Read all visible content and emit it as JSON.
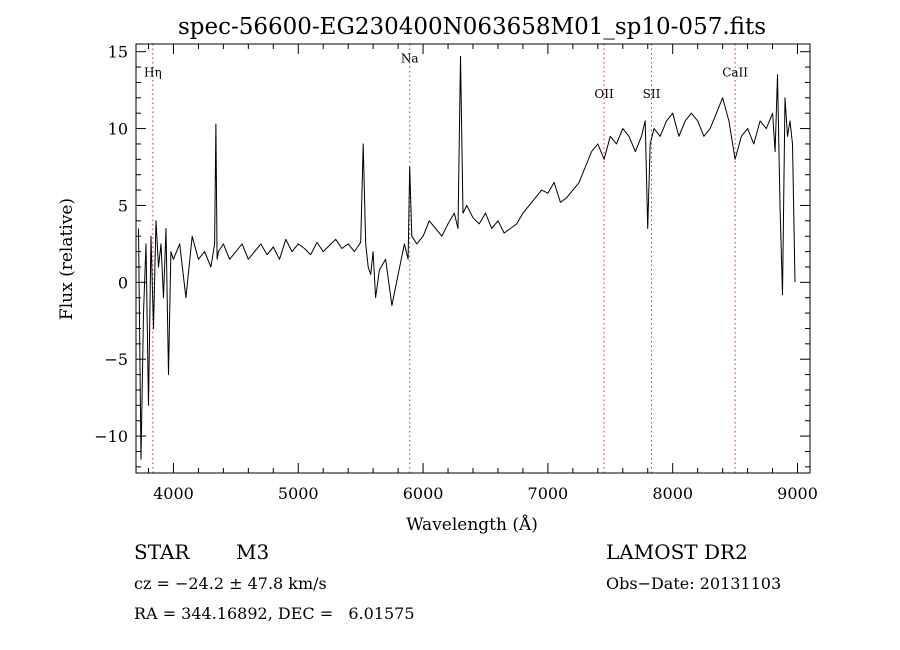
{
  "chart_data": {
    "type": "line",
    "title": "spec-56600-EG230400N063658M01_sp10-057.fits",
    "xlabel": "Wavelength (Å)",
    "ylabel": "Flux (relative)",
    "xlim": [
      3700,
      9100
    ],
    "ylim": [
      -12.4,
      15.5
    ],
    "xticks": [
      4000,
      5000,
      6000,
      7000,
      8000,
      9000
    ],
    "yticks": [
      -10,
      -5,
      0,
      5,
      10,
      15
    ],
    "ytick_labels": [
      "−10",
      "−5",
      "0",
      "5",
      "10",
      "15"
    ],
    "grid": false,
    "line_color": "#000000",
    "marker_color": "#cc3333",
    "lines": [
      {
        "label": "Hη",
        "x": 3835,
        "label_y": 13.4
      },
      {
        "label": "Na",
        "x": 5893,
        "label_y": 14.3
      },
      {
        "label": "OII",
        "x": 7450,
        "label_y": 12.0
      },
      {
        "label": "SII",
        "x": 7830,
        "label_y": 12.0
      },
      {
        "label": "CaII",
        "x": 8500,
        "label_y": 13.4
      }
    ],
    "series": [
      {
        "x": [
          3720,
          3740,
          3760,
          3780,
          3800,
          3820,
          3840,
          3860,
          3880,
          3900,
          3920,
          3940,
          3960,
          3980,
          4000,
          4050,
          4100,
          4150,
          4200,
          4250,
          4300,
          4330,
          4340,
          4350,
          4360,
          4400,
          4450,
          4500,
          4550,
          4600,
          4650,
          4700,
          4750,
          4800,
          4850,
          4900,
          4950,
          5000,
          5050,
          5100,
          5150,
          5200,
          5250,
          5300,
          5350,
          5400,
          5450,
          5500,
          5520,
          5540,
          5560,
          5580,
          5600,
          5620,
          5650,
          5700,
          5750,
          5800,
          5850,
          5880,
          5893,
          5910,
          5950,
          6000,
          6050,
          6100,
          6150,
          6200,
          6250,
          6280,
          6300,
          6320,
          6350,
          6400,
          6450,
          6500,
          6550,
          6600,
          6650,
          6700,
          6750,
          6800,
          6850,
          6900,
          6950,
          7000,
          7050,
          7100,
          7150,
          7200,
          7250,
          7300,
          7350,
          7400,
          7450,
          7500,
          7550,
          7600,
          7650,
          7700,
          7750,
          7780,
          7800,
          7820,
          7850,
          7900,
          7950,
          8000,
          8050,
          8100,
          8150,
          8200,
          8250,
          8300,
          8350,
          8400,
          8450,
          8500,
          8550,
          8600,
          8650,
          8700,
          8750,
          8800,
          8820,
          8840,
          8860,
          8880,
          8900,
          8920,
          8940,
          8960,
          8980
        ],
        "y": [
          3.5,
          -11.5,
          -2.0,
          2.5,
          -8.0,
          3.0,
          -3.0,
          4.0,
          1.0,
          2.5,
          -1.0,
          3.5,
          -6.0,
          2.0,
          1.5,
          2.5,
          -1.0,
          3.0,
          1.5,
          2.0,
          1.0,
          2.5,
          10.3,
          1.5,
          2.0,
          2.5,
          1.5,
          2.0,
          2.5,
          1.5,
          2.0,
          2.5,
          1.8,
          2.3,
          1.5,
          2.8,
          2.0,
          2.5,
          2.2,
          1.8,
          2.6,
          2.0,
          2.4,
          2.8,
          2.2,
          2.5,
          2.0,
          2.6,
          9.0,
          2.5,
          1.0,
          0.5,
          2.0,
          -1.0,
          0.8,
          1.5,
          -1.5,
          0.5,
          2.5,
          1.5,
          7.5,
          3.0,
          2.5,
          3.0,
          4.0,
          3.5,
          3.0,
          3.8,
          4.5,
          3.5,
          14.7,
          4.5,
          5.0,
          4.2,
          3.8,
          4.5,
          3.5,
          4.0,
          3.2,
          3.5,
          3.8,
          4.5,
          5.0,
          5.5,
          6.0,
          5.8,
          6.5,
          5.2,
          5.5,
          6.0,
          6.5,
          7.5,
          8.5,
          9.0,
          8.0,
          9.5,
          9.0,
          10.0,
          9.5,
          8.5,
          9.5,
          10.5,
          3.5,
          9.0,
          10.0,
          9.5,
          10.5,
          11.0,
          9.5,
          10.5,
          11.0,
          10.5,
          9.5,
          10.0,
          11.0,
          12.0,
          10.5,
          8.0,
          9.5,
          10.0,
          9.0,
          10.5,
          10.0,
          11.0,
          8.5,
          13.5,
          5.0,
          -0.8,
          12.0,
          9.5,
          10.5,
          9.0,
          0.0
        ]
      }
    ]
  },
  "info": {
    "object_type": "STAR",
    "subclass": "M3",
    "survey": "LAMOST DR2",
    "cz": "cz = −24.2 ± 47.8 km/s",
    "obs_date": "Obs−Date: 20131103",
    "coords": "RA = 344.16892, DEC =   6.01575"
  }
}
